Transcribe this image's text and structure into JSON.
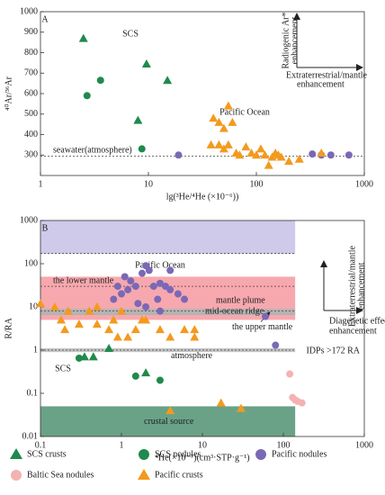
{
  "chart_data": [
    {
      "type": "scatter",
      "x_label": "lg(³He/⁴He (×10⁻⁶))",
      "y_label": "⁴⁰Ar/³⁶Ar",
      "xlog": true,
      "ylog": false,
      "xlim": [
        1,
        1000
      ],
      "xticks": [
        1,
        10,
        100,
        1000
      ],
      "ylim": [
        200,
        1000
      ],
      "yticks": [
        300,
        400,
        500,
        600,
        700,
        800,
        900,
        1000
      ],
      "annotations": [
        "A",
        "SCS",
        "Pacific Ocean",
        "Radiogenic Ar*",
        "enhancement",
        "Extraterrestrial/mantle",
        "enhancement"
      ],
      "ref_lines": [
        {
          "value": 295,
          "label": "seawater(atmosphere)"
        }
      ],
      "regions": [],
      "series": [
        {
          "name": "SCS crusts",
          "marker": "triangle",
          "color": "#1f8a4c",
          "x": [
            2.5,
            9.6,
            15,
            8
          ],
          "values": [
            870,
            745,
            665,
            470
          ]
        },
        {
          "name": "SCS nodules",
          "marker": "circle",
          "color": "#1f8a4c",
          "x": [
            2.7,
            3.6,
            8.7
          ],
          "values": [
            590,
            665,
            330
          ]
        },
        {
          "name": "Pacific nodules",
          "marker": "circle",
          "color": "#7a68b6",
          "x": [
            19,
            330,
            400,
            490,
            720
          ],
          "values": [
            300,
            305,
            300,
            300,
            300
          ]
        },
        {
          "name": "Pacific crusts",
          "marker": "triangle",
          "color": "#f39a1e",
          "x": [
            40,
            45,
            50,
            55,
            60,
            38,
            45,
            55,
            65,
            80,
            90,
            100,
            110,
            120,
            140,
            150,
            160,
            170,
            200,
            130,
            250,
            400,
            50,
            70
          ],
          "values": [
            480,
            460,
            430,
            540,
            460,
            350,
            350,
            350,
            310,
            340,
            310,
            300,
            330,
            300,
            290,
            310,
            300,
            290,
            270,
            250,
            280,
            310,
            330,
            300
          ]
        }
      ]
    },
    {
      "type": "scatter",
      "x_label": "⁴He(×10⁻⁷)(cm³·STP·g⁻¹)",
      "y_label": "R/RA",
      "xlog": true,
      "ylog": true,
      "xlim": [
        0.1,
        1000
      ],
      "xticks": [
        0.1,
        1,
        10,
        100,
        1000
      ],
      "ylim": [
        0.01,
        1000
      ],
      "yticks": [
        0.01,
        0.1,
        1,
        10,
        100,
        1000
      ],
      "annotations": [
        "B",
        "Pacific Ocean",
        "SCS",
        "Extraterrestrial/mantle",
        "enhancement",
        "Diagenetic effects",
        "enhancement"
      ],
      "regions": [
        {
          "range": [
            170,
            1000
          ],
          "x_to": 140,
          "color": "#cfc9ea",
          "label": "IDPs >172 RA"
        },
        {
          "range": [
            5,
            50
          ],
          "x_to": 140,
          "color": "#f7a8ae",
          "label": "mantle plume"
        },
        {
          "range": [
            6.5,
            9
          ],
          "x_to": 140,
          "color": "#b3b3b3",
          "label": "mid-ocean ridge"
        },
        {
          "range": [
            0.9,
            1.1
          ],
          "x_to": 140,
          "color": "#c4c4c4",
          "label": "atmosphere"
        },
        {
          "range": [
            0.01,
            0.05
          ],
          "x_to": 140,
          "color": "#6aa287",
          "label": "crustal source"
        }
      ],
      "ref_lines": [
        {
          "value": 172
        },
        {
          "value": 30,
          "label": "the lower mantle"
        },
        {
          "value": 8,
          "label": "the upper mantle"
        },
        {
          "value": 1
        }
      ],
      "series": [
        {
          "name": "SCS crusts",
          "marker": "triangle",
          "color": "#1f8a4c",
          "x": [
            0.35,
            0.45,
            0.7,
            2
          ],
          "values": [
            0.7,
            0.7,
            1.1,
            0.3
          ]
        },
        {
          "name": "SCS nodules",
          "marker": "circle",
          "color": "#1f8a4c",
          "x": [
            0.3,
            1.5,
            3
          ],
          "values": [
            0.65,
            0.25,
            0.2
          ]
        },
        {
          "name": "Pacific nodules",
          "marker": "circle",
          "color": "#7a68b6",
          "x": [
            1.5,
            1.8,
            2,
            2.2,
            2.5,
            1.2,
            1,
            0.9,
            1.3,
            3,
            3.5,
            4,
            2.8,
            5,
            6,
            1.6,
            2,
            4,
            0.8,
            3,
            60,
            80,
            1.1
          ],
          "values": [
            30,
            60,
            90,
            70,
            30,
            25,
            20,
            30,
            40,
            35,
            30,
            25,
            15,
            20,
            15,
            12,
            10,
            70,
            15,
            8,
            6,
            1.3,
            50
          ]
        },
        {
          "name": "Baltic Sea nodules",
          "marker": "circle",
          "color": "#f4b2b2",
          "x": [
            120,
            130,
            140,
            150,
            170
          ],
          "values": [
            0.28,
            0.08,
            0.07,
            0.065,
            0.06
          ]
        },
        {
          "name": "Pacific crusts",
          "marker": "triangle",
          "color": "#f39a1e",
          "x": [
            0.1,
            0.15,
            0.18,
            0.2,
            0.22,
            0.3,
            0.4,
            0.5,
            0.5,
            0.7,
            0.8,
            1,
            1.5,
            1.8,
            2,
            3,
            4,
            6,
            8,
            0.9,
            1.2,
            8,
            4,
            17,
            30
          ],
          "values": [
            12,
            10,
            5,
            3,
            8,
            4,
            8,
            10,
            4,
            3,
            5,
            8,
            3,
            5,
            5,
            3,
            2,
            3,
            3,
            2,
            2,
            2,
            0.04,
            0.06,
            0.045
          ]
        }
      ]
    }
  ]
}
